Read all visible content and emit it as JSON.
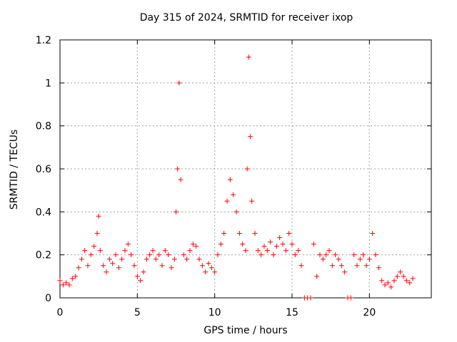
{
  "chart_data": {
    "type": "scatter",
    "title": "Day 315 of 2024, SRMTID for receiver ixop",
    "xlabel": "GPS time / hours",
    "ylabel": "SRMTID / TECUs",
    "xlim": [
      0,
      24
    ],
    "ylim": [
      0,
      1.2
    ],
    "x_ticks": [
      0,
      5,
      10,
      15,
      20
    ],
    "y_ticks": [
      0,
      0.2,
      0.4,
      0.6,
      0.8,
      1,
      1.2
    ],
    "x_tick_labels": [
      "0",
      "5",
      "10",
      "15",
      "20"
    ],
    "y_tick_labels": [
      "0",
      "0.2",
      "0.4",
      "0.6",
      "0.8",
      "1",
      "1.2"
    ],
    "grid": true,
    "marker": "plus",
    "color": "#ff0000",
    "series": [
      {
        "name": "SRMTID",
        "x": [
          0.0,
          0.2,
          0.4,
          0.6,
          0.8,
          1.0,
          1.2,
          1.4,
          1.6,
          1.8,
          2.0,
          2.2,
          2.4,
          2.5,
          2.6,
          2.8,
          3.0,
          3.2,
          3.4,
          3.6,
          3.8,
          4.0,
          4.2,
          4.4,
          4.6,
          4.8,
          5.0,
          5.2,
          5.4,
          5.6,
          5.8,
          6.0,
          6.2,
          6.4,
          6.6,
          6.8,
          7.0,
          7.2,
          7.4,
          7.5,
          7.6,
          7.7,
          7.8,
          8.0,
          8.2,
          8.4,
          8.6,
          8.8,
          9.0,
          9.2,
          9.4,
          9.6,
          9.8,
          10.0,
          10.2,
          10.4,
          10.6,
          10.8,
          11.0,
          11.2,
          11.4,
          11.6,
          11.8,
          12.0,
          12.1,
          12.2,
          12.3,
          12.4,
          12.6,
          12.8,
          13.0,
          13.2,
          13.4,
          13.6,
          13.8,
          14.0,
          14.2,
          14.4,
          14.6,
          14.8,
          15.0,
          15.2,
          15.4,
          15.6,
          15.8,
          16.0,
          16.2,
          16.4,
          16.6,
          16.8,
          17.0,
          17.2,
          17.4,
          17.6,
          17.8,
          18.0,
          18.2,
          18.4,
          18.6,
          18.8,
          19.0,
          19.2,
          19.4,
          19.6,
          19.8,
          20.0,
          20.2,
          20.4,
          20.6,
          20.8,
          21.0,
          21.2,
          21.4,
          21.6,
          21.8,
          22.0,
          22.2,
          22.4,
          22.6,
          22.8
        ],
        "values": [
          0.08,
          0.06,
          0.07,
          0.06,
          0.09,
          0.1,
          0.14,
          0.18,
          0.22,
          0.15,
          0.2,
          0.24,
          0.3,
          0.38,
          0.22,
          0.15,
          0.12,
          0.18,
          0.16,
          0.2,
          0.14,
          0.18,
          0.22,
          0.25,
          0.2,
          0.15,
          0.1,
          0.08,
          0.12,
          0.18,
          0.2,
          0.22,
          0.18,
          0.2,
          0.15,
          0.22,
          0.2,
          0.14,
          0.18,
          0.4,
          0.6,
          1.0,
          0.55,
          0.2,
          0.18,
          0.22,
          0.25,
          0.24,
          0.18,
          0.15,
          0.12,
          0.16,
          0.14,
          0.12,
          0.2,
          0.25,
          0.3,
          0.45,
          0.55,
          0.48,
          0.4,
          0.3,
          0.25,
          0.22,
          0.6,
          1.12,
          0.75,
          0.45,
          0.3,
          0.22,
          0.2,
          0.24,
          0.22,
          0.26,
          0.2,
          0.24,
          0.28,
          0.25,
          0.22,
          0.3,
          0.25,
          0.2,
          0.22,
          0.15,
          0.0,
          0.0,
          0.0,
          0.25,
          0.1,
          0.2,
          0.18,
          0.2,
          0.22,
          0.15,
          0.2,
          0.18,
          0.15,
          0.12,
          0.0,
          0.0,
          0.2,
          0.15,
          0.18,
          0.2,
          0.15,
          0.18,
          0.3,
          0.2,
          0.14,
          0.08,
          0.06,
          0.07,
          0.05,
          0.08,
          0.1,
          0.12,
          0.1,
          0.08,
          0.07,
          0.09
        ]
      }
    ]
  }
}
